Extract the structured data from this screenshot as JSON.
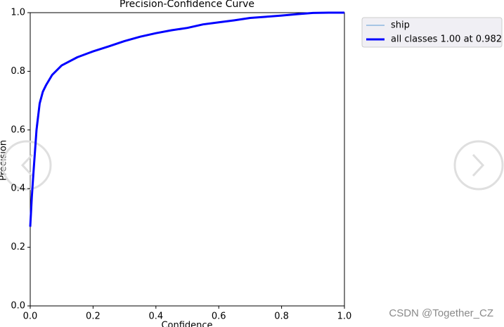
{
  "chart_data": {
    "type": "line",
    "title": "Precision-Confidence Curve",
    "xlabel": "Confidence",
    "ylabel": "Precision",
    "x": [
      0,
      0.005,
      0.01,
      0.02,
      0.03,
      0.04,
      0.05,
      0.07,
      0.1,
      0.15,
      0.2,
      0.25,
      0.3,
      0.35,
      0.4,
      0.45,
      0.5,
      0.55,
      0.6,
      0.65,
      0.7,
      0.75,
      0.8,
      0.85,
      0.9,
      0.95,
      1.0
    ],
    "series": [
      {
        "name": "ship",
        "color": "#5b9bd5",
        "width": 1,
        "values": [
          0.27,
          0.38,
          0.46,
          0.62,
          0.7,
          0.735,
          0.755,
          0.79,
          0.82,
          0.848,
          0.868,
          0.885,
          0.903,
          0.918,
          0.93,
          0.94,
          0.948,
          0.96,
          0.967,
          0.974,
          0.982,
          0.986,
          0.99,
          0.995,
          0.999,
          1.0,
          1.0
        ]
      },
      {
        "name": "all classes 1.00 at 0.982",
        "color": "#0000ff",
        "width": 3,
        "values": [
          0.27,
          0.37,
          0.45,
          0.6,
          0.69,
          0.73,
          0.752,
          0.788,
          0.82,
          0.848,
          0.868,
          0.885,
          0.903,
          0.918,
          0.93,
          0.94,
          0.948,
          0.96,
          0.967,
          0.974,
          0.982,
          0.986,
          0.99,
          0.995,
          0.999,
          1.0,
          1.0
        ]
      }
    ],
    "xlim": [
      0,
      1
    ],
    "ylim": [
      0,
      1
    ],
    "xticks": [
      {
        "value": 0,
        "label": "0.0"
      },
      0.2,
      0.4,
      0.6,
      0.8,
      {
        "value": 1,
        "label": "1.0"
      }
    ],
    "yticks": [
      {
        "value": 0,
        "label": "0.0"
      },
      0.2,
      0.4,
      0.6,
      0.8,
      {
        "value": 1,
        "label": "1.0"
      }
    ],
    "grid": false,
    "legend": "right"
  },
  "watermark": "CSDN @Together_CZ"
}
